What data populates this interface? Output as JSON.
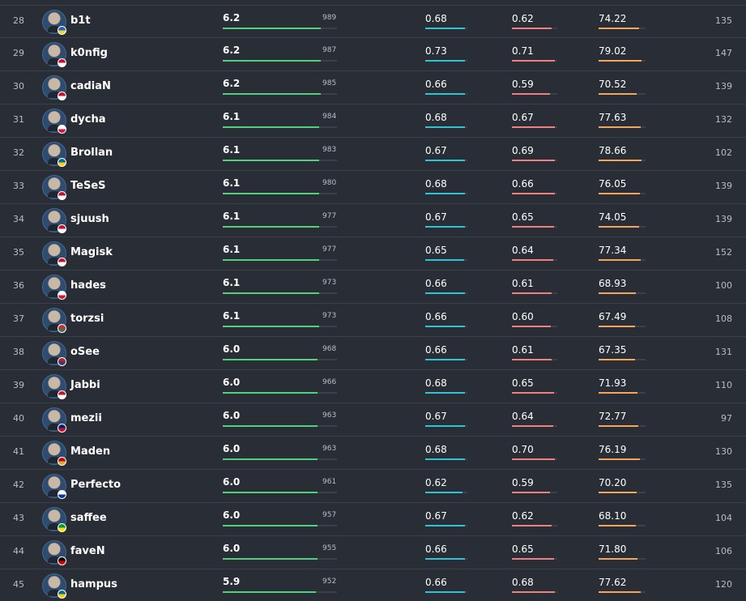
{
  "colors": {
    "rating": "#52d17c",
    "kpr": "#2ec4d6",
    "dpr": "#f07f7f",
    "adr": "#f5a55a",
    "track": "#3b4049"
  },
  "rows": [
    {
      "rank": "28",
      "name": "b1t",
      "flag": "ukraine-flag-icon",
      "flag_colors": [
        "#1f5fd6",
        "#f4d21f"
      ],
      "rating": "6.2",
      "score": "989",
      "kpr": "0.68",
      "dpr": "0.62",
      "adr": "74.22",
      "maps": "135"
    },
    {
      "rank": "29",
      "name": "k0nfig",
      "flag": "denmark-flag-icon",
      "flag_colors": [
        "#c8102e",
        "#ffffff"
      ],
      "rating": "6.2",
      "score": "987",
      "kpr": "0.73",
      "dpr": "0.71",
      "adr": "79.02",
      "maps": "147"
    },
    {
      "rank": "30",
      "name": "cadiaN",
      "flag": "denmark-flag-icon",
      "flag_colors": [
        "#c8102e",
        "#ffffff"
      ],
      "rating": "6.2",
      "score": "985",
      "kpr": "0.66",
      "dpr": "0.59",
      "adr": "70.52",
      "maps": "139"
    },
    {
      "rank": "31",
      "name": "dycha",
      "flag": "poland-flag-icon",
      "flag_colors": [
        "#ffffff",
        "#dc143c"
      ],
      "rating": "6.1",
      "score": "984",
      "kpr": "0.68",
      "dpr": "0.67",
      "adr": "77.63",
      "maps": "132"
    },
    {
      "rank": "32",
      "name": "Brollan",
      "flag": "sweden-flag-icon",
      "flag_colors": [
        "#006aa7",
        "#fecc00"
      ],
      "rating": "6.1",
      "score": "983",
      "kpr": "0.67",
      "dpr": "0.69",
      "adr": "78.66",
      "maps": "102"
    },
    {
      "rank": "33",
      "name": "TeSeS",
      "flag": "denmark-flag-icon",
      "flag_colors": [
        "#c8102e",
        "#ffffff"
      ],
      "rating": "6.1",
      "score": "980",
      "kpr": "0.68",
      "dpr": "0.66",
      "adr": "76.05",
      "maps": "139"
    },
    {
      "rank": "34",
      "name": "sjuush",
      "flag": "denmark-flag-icon",
      "flag_colors": [
        "#c8102e",
        "#ffffff"
      ],
      "rating": "6.1",
      "score": "977",
      "kpr": "0.67",
      "dpr": "0.65",
      "adr": "74.05",
      "maps": "139"
    },
    {
      "rank": "35",
      "name": "Magisk",
      "flag": "denmark-flag-icon",
      "flag_colors": [
        "#c8102e",
        "#ffffff"
      ],
      "rating": "6.1",
      "score": "977",
      "kpr": "0.65",
      "dpr": "0.64",
      "adr": "77.34",
      "maps": "152"
    },
    {
      "rank": "36",
      "name": "hades",
      "flag": "poland-flag-icon",
      "flag_colors": [
        "#ffffff",
        "#dc143c"
      ],
      "rating": "6.1",
      "score": "973",
      "kpr": "0.66",
      "dpr": "0.61",
      "adr": "68.93",
      "maps": "100"
    },
    {
      "rank": "37",
      "name": "torzsi",
      "flag": "hungary-flag-icon",
      "flag_colors": [
        "#ce2939",
        "#477050"
      ],
      "rating": "6.1",
      "score": "973",
      "kpr": "0.66",
      "dpr": "0.60",
      "adr": "67.49",
      "maps": "108"
    },
    {
      "rank": "38",
      "name": "oSee",
      "flag": "usa-flag-icon",
      "flag_colors": [
        "#b22234",
        "#3c3b6e"
      ],
      "rating": "6.0",
      "score": "968",
      "kpr": "0.66",
      "dpr": "0.61",
      "adr": "67.35",
      "maps": "131"
    },
    {
      "rank": "39",
      "name": "Jabbi",
      "flag": "denmark-flag-icon",
      "flag_colors": [
        "#c8102e",
        "#ffffff"
      ],
      "rating": "6.0",
      "score": "966",
      "kpr": "0.68",
      "dpr": "0.65",
      "adr": "71.93",
      "maps": "110"
    },
    {
      "rank": "40",
      "name": "mezii",
      "flag": "uk-flag-icon",
      "flag_colors": [
        "#012169",
        "#c8102e"
      ],
      "rating": "6.0",
      "score": "963",
      "kpr": "0.67",
      "dpr": "0.64",
      "adr": "72.77",
      "maps": "97"
    },
    {
      "rank": "41",
      "name": "Maden",
      "flag": "montenegro-flag-icon",
      "flag_colors": [
        "#c40308",
        "#d4af37"
      ],
      "rating": "6.0",
      "score": "963",
      "kpr": "0.68",
      "dpr": "0.70",
      "adr": "76.19",
      "maps": "130"
    },
    {
      "rank": "42",
      "name": "Perfecto",
      "flag": "russia-flag-icon",
      "flag_colors": [
        "#ffffff",
        "#0039a6"
      ],
      "rating": "6.0",
      "score": "961",
      "kpr": "0.62",
      "dpr": "0.59",
      "adr": "70.20",
      "maps": "135"
    },
    {
      "rank": "43",
      "name": "saffee",
      "flag": "brazil-flag-icon",
      "flag_colors": [
        "#009c3b",
        "#ffdf00"
      ],
      "rating": "6.0",
      "score": "957",
      "kpr": "0.67",
      "dpr": "0.62",
      "adr": "68.10",
      "maps": "104"
    },
    {
      "rank": "44",
      "name": "faveN",
      "flag": "germany-flag-icon",
      "flag_colors": [
        "#000000",
        "#dd0000"
      ],
      "rating": "6.0",
      "score": "955",
      "kpr": "0.66",
      "dpr": "0.65",
      "adr": "71.80",
      "maps": "106"
    },
    {
      "rank": "45",
      "name": "hampus",
      "flag": "sweden-flag-icon",
      "flag_colors": [
        "#006aa7",
        "#fecc00"
      ],
      "rating": "5.9",
      "score": "952",
      "kpr": "0.66",
      "dpr": "0.68",
      "adr": "77.62",
      "maps": "120"
    }
  ]
}
